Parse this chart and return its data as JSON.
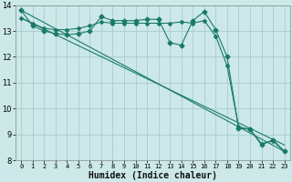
{
  "xlabel": "Humidex (Indice chaleur)",
  "bg_color": "#cce8e8",
  "grid_color": "#aacccc",
  "line_color": "#1a7a6a",
  "xlim": [
    -0.5,
    23.5
  ],
  "ylim": [
    8,
    14
  ],
  "yticks": [
    8,
    9,
    10,
    11,
    12,
    13,
    14
  ],
  "xticks": [
    0,
    1,
    2,
    3,
    4,
    5,
    6,
    7,
    8,
    9,
    10,
    11,
    12,
    13,
    14,
    15,
    16,
    17,
    18,
    19,
    20,
    21,
    22,
    23
  ],
  "series1_x": [
    0,
    1,
    2,
    3,
    4,
    5,
    6,
    7,
    8,
    9,
    10,
    11,
    12,
    13,
    14,
    15,
    16,
    17,
    18,
    19,
    20,
    21,
    22,
    23
  ],
  "series1_y": [
    13.8,
    13.2,
    13.0,
    12.9,
    12.85,
    12.9,
    13.0,
    13.55,
    13.4,
    13.4,
    13.4,
    13.45,
    13.45,
    12.55,
    12.45,
    13.4,
    13.75,
    13.05,
    12.0,
    9.25,
    9.2,
    8.6,
    8.8,
    8.35
  ],
  "series2_x": [
    0,
    1,
    2,
    3,
    4,
    5,
    6,
    7,
    8,
    9,
    10,
    11,
    12,
    13,
    14,
    15,
    16,
    17,
    18,
    19,
    20,
    21,
    22,
    23
  ],
  "series2_y": [
    13.5,
    13.3,
    13.1,
    13.05,
    13.05,
    13.1,
    13.2,
    13.35,
    13.3,
    13.3,
    13.3,
    13.3,
    13.3,
    13.3,
    13.35,
    13.3,
    13.4,
    12.8,
    11.65,
    9.3,
    9.2,
    8.65,
    8.75,
    8.35
  ],
  "series3_x": [
    0,
    23
  ],
  "series3_y": [
    13.8,
    8.35
  ],
  "series4_x": [
    0,
    23
  ],
  "series4_y": [
    13.5,
    8.6
  ]
}
